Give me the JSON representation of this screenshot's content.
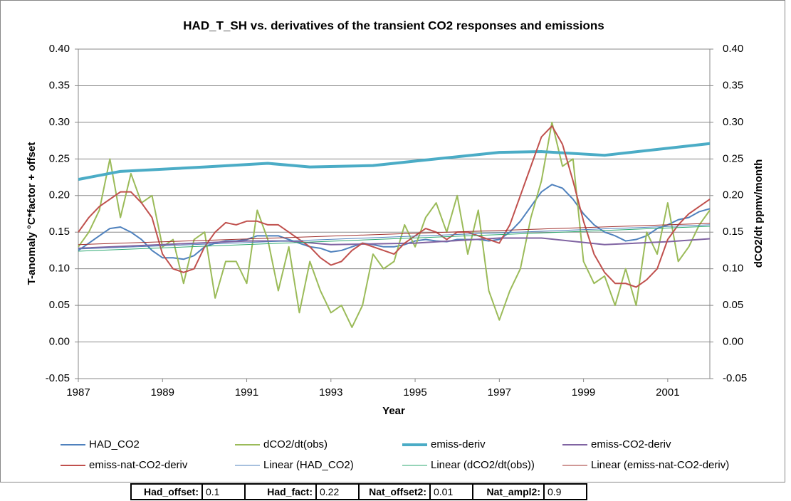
{
  "chart_data": {
    "type": "line",
    "title": "HAD_T_SH vs. derivatives of the transient CO2 responses and emissions",
    "x_label": "Year",
    "y_label": "T-anomaly °C*factor + offset",
    "y2_label": "dCO2/dt ppmv/month",
    "xlim": [
      1987,
      2002
    ],
    "xticks": [
      1987,
      1989,
      1991,
      1993,
      1995,
      1997,
      1999,
      2001
    ],
    "ylim": [
      -0.05,
      0.4
    ],
    "yticks": [
      {
        "value": -0.05,
        "label": "-0.05"
      },
      {
        "value": 0,
        "label": "0.00"
      },
      {
        "value": 0.05,
        "label": "0.05"
      },
      {
        "value": 0.1,
        "label": "0.10"
      },
      {
        "value": 0.15,
        "label": "0.15"
      },
      {
        "value": 0.2,
        "label": "0.20"
      },
      {
        "value": 0.25,
        "label": "0.25"
      },
      {
        "value": 0.3,
        "label": "0.30"
      },
      {
        "value": 0.35,
        "label": "0.35"
      },
      {
        "value": 0.4,
        "label": "0.40"
      }
    ],
    "y2lim": [
      -0.05,
      0.4
    ],
    "y2ticks": [
      {
        "value": -0.05,
        "label": "-0.05"
      },
      {
        "value": 0,
        "label": "0.00"
      },
      {
        "value": 0.05,
        "label": "0.05"
      },
      {
        "value": 0.1,
        "label": "0.10"
      },
      {
        "value": 0.15,
        "label": "0.15"
      },
      {
        "value": 0.2,
        "label": "0.20"
      },
      {
        "value": 0.25,
        "label": "0.25"
      },
      {
        "value": 0.3,
        "label": "0.30"
      },
      {
        "value": 0.35,
        "label": "0.35"
      },
      {
        "value": 0.4,
        "label": "0.40"
      }
    ],
    "grid": true,
    "legend": "bottom",
    "series": [
      {
        "name": "HAD_CO2",
        "color": "#4f81bd",
        "line_width": 2,
        "x": [
          1987,
          1987.25,
          1987.5,
          1987.75,
          1988,
          1988.25,
          1988.5,
          1988.75,
          1989,
          1989.25,
          1989.5,
          1989.75,
          1990,
          1990.25,
          1990.5,
          1990.75,
          1991,
          1991.25,
          1991.5,
          1991.75,
          1992,
          1992.25,
          1992.5,
          1992.75,
          1993,
          1993.25,
          1993.5,
          1993.75,
          1994,
          1994.25,
          1994.5,
          1994.75,
          1995,
          1995.25,
          1995.5,
          1995.75,
          1996,
          1996.25,
          1996.5,
          1996.75,
          1997,
          1997.25,
          1997.5,
          1997.75,
          1998,
          1998.25,
          1998.5,
          1998.75,
          1999,
          1999.25,
          1999.5,
          1999.75,
          2000,
          2000.25,
          2000.5,
          2000.75,
          2001,
          2001.25,
          2001.5,
          2001.75,
          2002
        ],
        "values": [
          0.125,
          0.135,
          0.145,
          0.155,
          0.157,
          0.15,
          0.14,
          0.125,
          0.115,
          0.115,
          0.113,
          0.118,
          0.13,
          0.135,
          0.138,
          0.138,
          0.14,
          0.145,
          0.145,
          0.145,
          0.14,
          0.135,
          0.13,
          0.128,
          0.123,
          0.125,
          0.13,
          0.135,
          0.133,
          0.13,
          0.13,
          0.133,
          0.138,
          0.14,
          0.138,
          0.137,
          0.14,
          0.14,
          0.14,
          0.138,
          0.14,
          0.15,
          0.165,
          0.185,
          0.205,
          0.215,
          0.21,
          0.195,
          0.175,
          0.16,
          0.15,
          0.145,
          0.138,
          0.14,
          0.145,
          0.155,
          0.16,
          0.167,
          0.17,
          0.178,
          0.182
        ]
      },
      {
        "name": "dCO2/dt(obs)",
        "color": "#9bbb59",
        "line_width": 2,
        "x": [
          1987,
          1987.25,
          1987.5,
          1987.75,
          1988,
          1988.25,
          1988.5,
          1988.75,
          1989,
          1989.25,
          1989.5,
          1989.75,
          1990,
          1990.25,
          1990.5,
          1990.75,
          1991,
          1991.25,
          1991.5,
          1991.75,
          1992,
          1992.25,
          1992.5,
          1992.75,
          1993,
          1993.25,
          1993.5,
          1993.75,
          1994,
          1994.25,
          1994.5,
          1994.75,
          1995,
          1995.25,
          1995.5,
          1995.75,
          1996,
          1996.25,
          1996.5,
          1996.75,
          1997,
          1997.25,
          1997.5,
          1997.75,
          1998,
          1998.25,
          1998.5,
          1998.75,
          1999,
          1999.25,
          1999.5,
          1999.75,
          2000,
          2000.25,
          2000.5,
          2000.75,
          2001,
          2001.25,
          2001.5,
          2001.75,
          2002
        ],
        "values": [
          0.13,
          0.15,
          0.18,
          0.25,
          0.17,
          0.23,
          0.19,
          0.2,
          0.13,
          0.14,
          0.08,
          0.14,
          0.15,
          0.06,
          0.11,
          0.11,
          0.08,
          0.18,
          0.14,
          0.07,
          0.13,
          0.04,
          0.11,
          0.07,
          0.04,
          0.05,
          0.02,
          0.05,
          0.12,
          0.1,
          0.11,
          0.16,
          0.13,
          0.17,
          0.19,
          0.15,
          0.2,
          0.12,
          0.18,
          0.07,
          0.03,
          0.07,
          0.1,
          0.17,
          0.22,
          0.3,
          0.24,
          0.25,
          0.11,
          0.08,
          0.09,
          0.05,
          0.1,
          0.05,
          0.15,
          0.12,
          0.19,
          0.11,
          0.13,
          0.16,
          0.18
        ]
      },
      {
        "name": "emiss-deriv",
        "color": "#4bacc6",
        "line_width": 4,
        "x": [
          1987,
          1988,
          1990,
          1991.5,
          1992.5,
          1994,
          1995,
          1997,
          1998,
          1999.5,
          2002
        ],
        "values": [
          0.222,
          0.233,
          0.239,
          0.244,
          0.239,
          0.241,
          0.247,
          0.259,
          0.26,
          0.255,
          0.271
        ]
      },
      {
        "name": "emiss-CO2-deriv",
        "color": "#8064a2",
        "line_width": 2,
        "x": [
          1987,
          1989,
          1991,
          1992,
          1993,
          1995,
          1997,
          1998,
          1999.5,
          2001,
          2002
        ],
        "values": [
          0.128,
          0.133,
          0.138,
          0.138,
          0.133,
          0.135,
          0.142,
          0.142,
          0.133,
          0.137,
          0.141
        ]
      },
      {
        "name": "emiss-nat-CO2-deriv",
        "color": "#c0504d",
        "line_width": 2,
        "x": [
          1987,
          1987.25,
          1987.5,
          1987.75,
          1988,
          1988.25,
          1988.5,
          1988.75,
          1989,
          1989.25,
          1989.5,
          1989.75,
          1990,
          1990.25,
          1990.5,
          1990.75,
          1991,
          1991.25,
          1991.5,
          1991.75,
          1992,
          1992.25,
          1992.5,
          1992.75,
          1993,
          1993.25,
          1993.5,
          1993.75,
          1994,
          1994.25,
          1994.5,
          1994.75,
          1995,
          1995.25,
          1995.5,
          1995.75,
          1996,
          1996.25,
          1996.5,
          1996.75,
          1997,
          1997.25,
          1997.5,
          1997.75,
          1998,
          1998.25,
          1998.5,
          1998.75,
          1999,
          1999.25,
          1999.5,
          1999.75,
          2000,
          2000.25,
          2000.5,
          2000.75,
          2001,
          2001.25,
          2001.5,
          2001.75,
          2002
        ],
        "values": [
          0.15,
          0.17,
          0.185,
          0.195,
          0.205,
          0.205,
          0.19,
          0.17,
          0.12,
          0.1,
          0.095,
          0.1,
          0.13,
          0.15,
          0.163,
          0.16,
          0.165,
          0.165,
          0.16,
          0.16,
          0.15,
          0.14,
          0.13,
          0.115,
          0.105,
          0.11,
          0.125,
          0.135,
          0.13,
          0.125,
          0.12,
          0.135,
          0.145,
          0.155,
          0.15,
          0.14,
          0.15,
          0.15,
          0.145,
          0.14,
          0.135,
          0.16,
          0.2,
          0.24,
          0.28,
          0.295,
          0.27,
          0.22,
          0.165,
          0.12,
          0.095,
          0.08,
          0.08,
          0.075,
          0.085,
          0.1,
          0.14,
          0.16,
          0.175,
          0.185,
          0.195
        ]
      },
      {
        "name": "Linear (HAD_CO2)",
        "color": "#4f81bd",
        "line_width": 1,
        "x": [
          1987,
          2002
        ],
        "values": [
          0.127,
          0.16
        ]
      },
      {
        "name": "Linear (dCO2/dt(obs))",
        "color": "#2ca870",
        "line_width": 1,
        "x": [
          1987,
          2002
        ],
        "values": [
          0.124,
          0.158
        ]
      },
      {
        "name": "Linear (emiss-nat-CO2-deriv)",
        "color": "#a0302d",
        "line_width": 1,
        "x": [
          1987,
          2002
        ],
        "values": [
          0.133,
          0.162
        ]
      }
    ]
  },
  "parameters": [
    {
      "label": "Had_offset:",
      "value": 0.1
    },
    {
      "label": "Had_fact:",
      "value": 0.22
    },
    {
      "label": "Nat_offset2:",
      "value": 0.01
    },
    {
      "label": "Nat_ampl2:",
      "value": 0.9
    }
  ]
}
